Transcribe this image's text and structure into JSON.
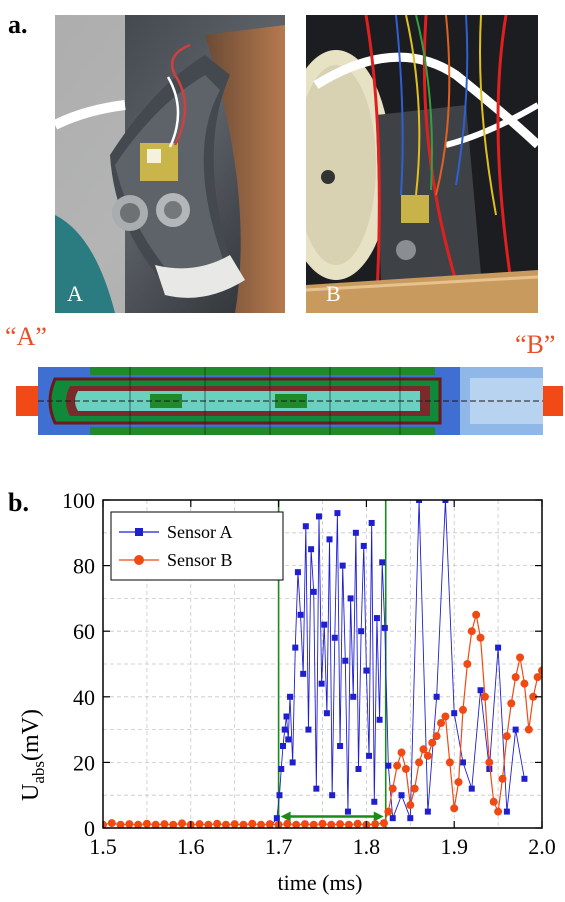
{
  "panel_a": {
    "letter": "a.",
    "photo_left_label": "A",
    "photo_right_label": "B",
    "end_label_left": "“A”",
    "end_label_right": "“B”"
  },
  "panel_b": {
    "letter": "b."
  },
  "colors": {
    "sensor_a": "#1f1fd0",
    "sensor_b": "#f04a14",
    "marker_line": "#1a8a1a",
    "end_block": "#f24a16"
  },
  "chart_data": {
    "type": "scatter",
    "title": "",
    "xlabel": "time (ms)",
    "ylabel_main": "U",
    "ylabel_sub": "abs",
    "ylabel_unit": "(mV)",
    "xlim": [
      1.5,
      2.0
    ],
    "ylim": [
      0,
      100
    ],
    "xticks": [
      "1.5",
      "1.6",
      "1.7",
      "1.8",
      "1.9",
      "2.0"
    ],
    "yticks": [
      "0",
      "20",
      "40",
      "60",
      "80",
      "100"
    ],
    "grid": true,
    "legend_position": "top-left",
    "markers_x": [
      1.7,
      1.822
    ],
    "series": [
      {
        "name": "Sensor A",
        "marker": "square",
        "x": [
          1.5,
          1.52,
          1.54,
          1.56,
          1.58,
          1.6,
          1.62,
          1.64,
          1.66,
          1.68,
          1.69,
          1.698,
          1.701,
          1.703,
          1.705,
          1.707,
          1.709,
          1.711,
          1.713,
          1.716,
          1.719,
          1.722,
          1.725,
          1.728,
          1.731,
          1.734,
          1.737,
          1.74,
          1.743,
          1.746,
          1.749,
          1.752,
          1.755,
          1.758,
          1.761,
          1.764,
          1.767,
          1.77,
          1.773,
          1.776,
          1.779,
          1.782,
          1.785,
          1.788,
          1.791,
          1.794,
          1.797,
          1.8,
          1.803,
          1.806,
          1.809,
          1.812,
          1.815,
          1.818,
          1.821,
          1.825,
          1.83,
          1.84,
          1.85,
          1.86,
          1.87,
          1.88,
          1.89,
          1.9,
          1.91,
          1.92,
          1.93,
          1.94,
          1.95,
          1.96,
          1.97,
          1.98
        ],
        "y": [
          0,
          0,
          0,
          0,
          0,
          0,
          0,
          0,
          0,
          0,
          0,
          3,
          10,
          18,
          25,
          30,
          34,
          27,
          40,
          20,
          55,
          78,
          65,
          47,
          92,
          30,
          85,
          72,
          12,
          95,
          44,
          62,
          35,
          88,
          10,
          58,
          96,
          25,
          80,
          51,
          5,
          70,
          40,
          90,
          18,
          60,
          86,
          48,
          22,
          93,
          8,
          64,
          33,
          81,
          61,
          19,
          3,
          10,
          3,
          100,
          5,
          40,
          100,
          35,
          20,
          12,
          42,
          18,
          55,
          5,
          30,
          15
        ]
      },
      {
        "name": "Sensor B",
        "marker": "circle",
        "x": [
          1.5,
          1.51,
          1.52,
          1.53,
          1.54,
          1.55,
          1.56,
          1.57,
          1.58,
          1.59,
          1.6,
          1.61,
          1.62,
          1.63,
          1.64,
          1.65,
          1.66,
          1.67,
          1.68,
          1.69,
          1.7,
          1.71,
          1.72,
          1.73,
          1.74,
          1.75,
          1.76,
          1.77,
          1.78,
          1.79,
          1.8,
          1.81,
          1.82,
          1.825,
          1.83,
          1.835,
          1.84,
          1.845,
          1.85,
          1.855,
          1.86,
          1.865,
          1.87,
          1.875,
          1.88,
          1.885,
          1.89,
          1.895,
          1.9,
          1.905,
          1.91,
          1.915,
          1.92,
          1.925,
          1.93,
          1.935,
          1.94,
          1.945,
          1.95,
          1.955,
          1.96,
          1.965,
          1.97,
          1.975,
          1.98,
          1.985,
          1.99,
          1.995,
          2.0
        ],
        "y": [
          1,
          1.5,
          1,
          1.2,
          1,
          1.3,
          1,
          1.2,
          1,
          1.4,
          1,
          1.2,
          1,
          1.3,
          1,
          1.2,
          1,
          1.3,
          1,
          1.2,
          1,
          1.3,
          1,
          1.2,
          1,
          1.3,
          1,
          1.2,
          1,
          1.3,
          1,
          1.2,
          1.5,
          5,
          12,
          19,
          23,
          18,
          7,
          12,
          20,
          24,
          22,
          26,
          28,
          32,
          34,
          20,
          6,
          14,
          36,
          50,
          60,
          65,
          58,
          40,
          20,
          8,
          5,
          15,
          28,
          38,
          46,
          52,
          44,
          30,
          40,
          46,
          48
        ]
      }
    ]
  }
}
